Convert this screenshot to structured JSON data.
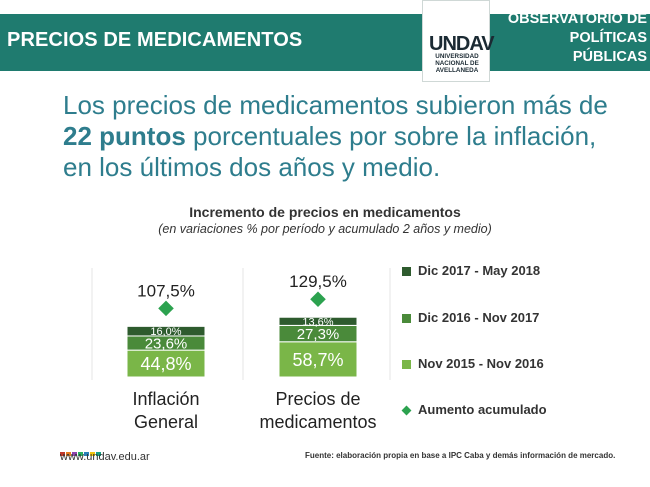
{
  "header": {
    "title": "PRECIOS DE MEDICAMENTOS",
    "logo_mark": "UNDAV",
    "logo_sub": "UNIVERSIDAD NACIONAL DE AVELLANEDA",
    "obs_line1": "OBSERVATORIO DE",
    "obs_line2": "POLÍTICAS PÚBLICAS"
  },
  "headline": {
    "part1": "Los precios de medicamentos subieron más de ",
    "bold": "22 puntos",
    "part2": " porcentuales por sobre la inflación, en los últimos dos años y medio."
  },
  "chart_data": {
    "type": "bar",
    "stacked": true,
    "title": "Incremento de precios en medicamentos",
    "subtitle": "(en variaciones % por período y acumulado 2 años y medio)",
    "categories": [
      "Inflación\nGeneral",
      "Precios de\nmedicamentos"
    ],
    "series": [
      {
        "name": "Nov 2015 - Nov 2016",
        "values": [
          44.8,
          58.7
        ],
        "labels": [
          "44,8%",
          "58,7%"
        ],
        "color": "#7ab648"
      },
      {
        "name": "Dic 2016 - Nov 2017",
        "values": [
          23.6,
          27.3
        ],
        "labels": [
          "23,6%",
          "27,3%"
        ],
        "color": "#4a8a3a"
      },
      {
        "name": "Dic 2017 - May 2018",
        "values": [
          16.0,
          13.6
        ],
        "labels": [
          "16,0%",
          "13,6%"
        ],
        "color": "#2e5b2e"
      }
    ],
    "accumulated": {
      "name": "Aumento acumulado",
      "values": [
        107.5,
        129.5
      ],
      "labels": [
        "107,5%",
        "129,5%"
      ],
      "color": "#2ca24f"
    },
    "legend_position": "right",
    "legend_order": [
      "Dic 2017 - May 2018",
      "Dic 2016 - Nov 2017",
      "Nov 2015 - Nov 2016",
      "Aumento acumulado"
    ]
  },
  "footer": {
    "url": "www.undav.edu.ar",
    "source": "Fuente: elaboración propia en base a IPC Caba y demás información de mercado.",
    "dot_colors": [
      "#c0392b",
      "#e67e22",
      "#8e44ad",
      "#27ae60",
      "#2980b9",
      "#f1c40f",
      "#16a085"
    ]
  }
}
